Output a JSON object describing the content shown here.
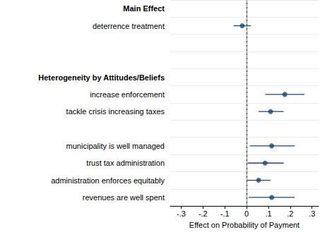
{
  "chart_data": {
    "type": "scatter",
    "categories": [
      "Main Effect",
      "deterrence treatment",
      null,
      null,
      "Heterogeneity by Attitudes/Beliefs",
      "increase enforcement",
      "tackle crisis increasing taxes",
      null,
      "municipality is well managed",
      "trust tax administration",
      "administration enforces equitably",
      "revenues are well spent"
    ],
    "groups": [
      "Main Effect",
      "Heterogeneity by Attitudes/Beliefs"
    ],
    "values": [
      null,
      -0.02,
      null,
      null,
      null,
      0.175,
      0.11,
      null,
      0.115,
      0.085,
      0.055,
      0.115
    ],
    "ci_low": [
      null,
      -0.06,
      null,
      null,
      null,
      0.085,
      0.055,
      null,
      0.015,
      0.005,
      0.0,
      0.01
    ],
    "ci_high": [
      null,
      0.02,
      null,
      null,
      null,
      0.265,
      0.17,
      null,
      0.22,
      0.17,
      0.11,
      0.22
    ],
    "color": "#1a476f",
    "xlabel": "Effect on Probability of Payment",
    "xlim": [
      -0.35,
      0.33
    ],
    "xticks": [
      {
        "value": -0.3,
        "label": "-.3"
      },
      {
        "value": -0.2,
        "label": "-.2"
      },
      {
        "value": -0.1,
        "label": "-.1"
      },
      0,
      {
        "value": 0.1,
        "label": ".1"
      },
      {
        "value": 0.2,
        "label": ".2"
      },
      {
        "value": 0.3,
        "label": ".3"
      }
    ],
    "reference_line": 0,
    "orientation": "horizontal",
    "grid": true
  }
}
